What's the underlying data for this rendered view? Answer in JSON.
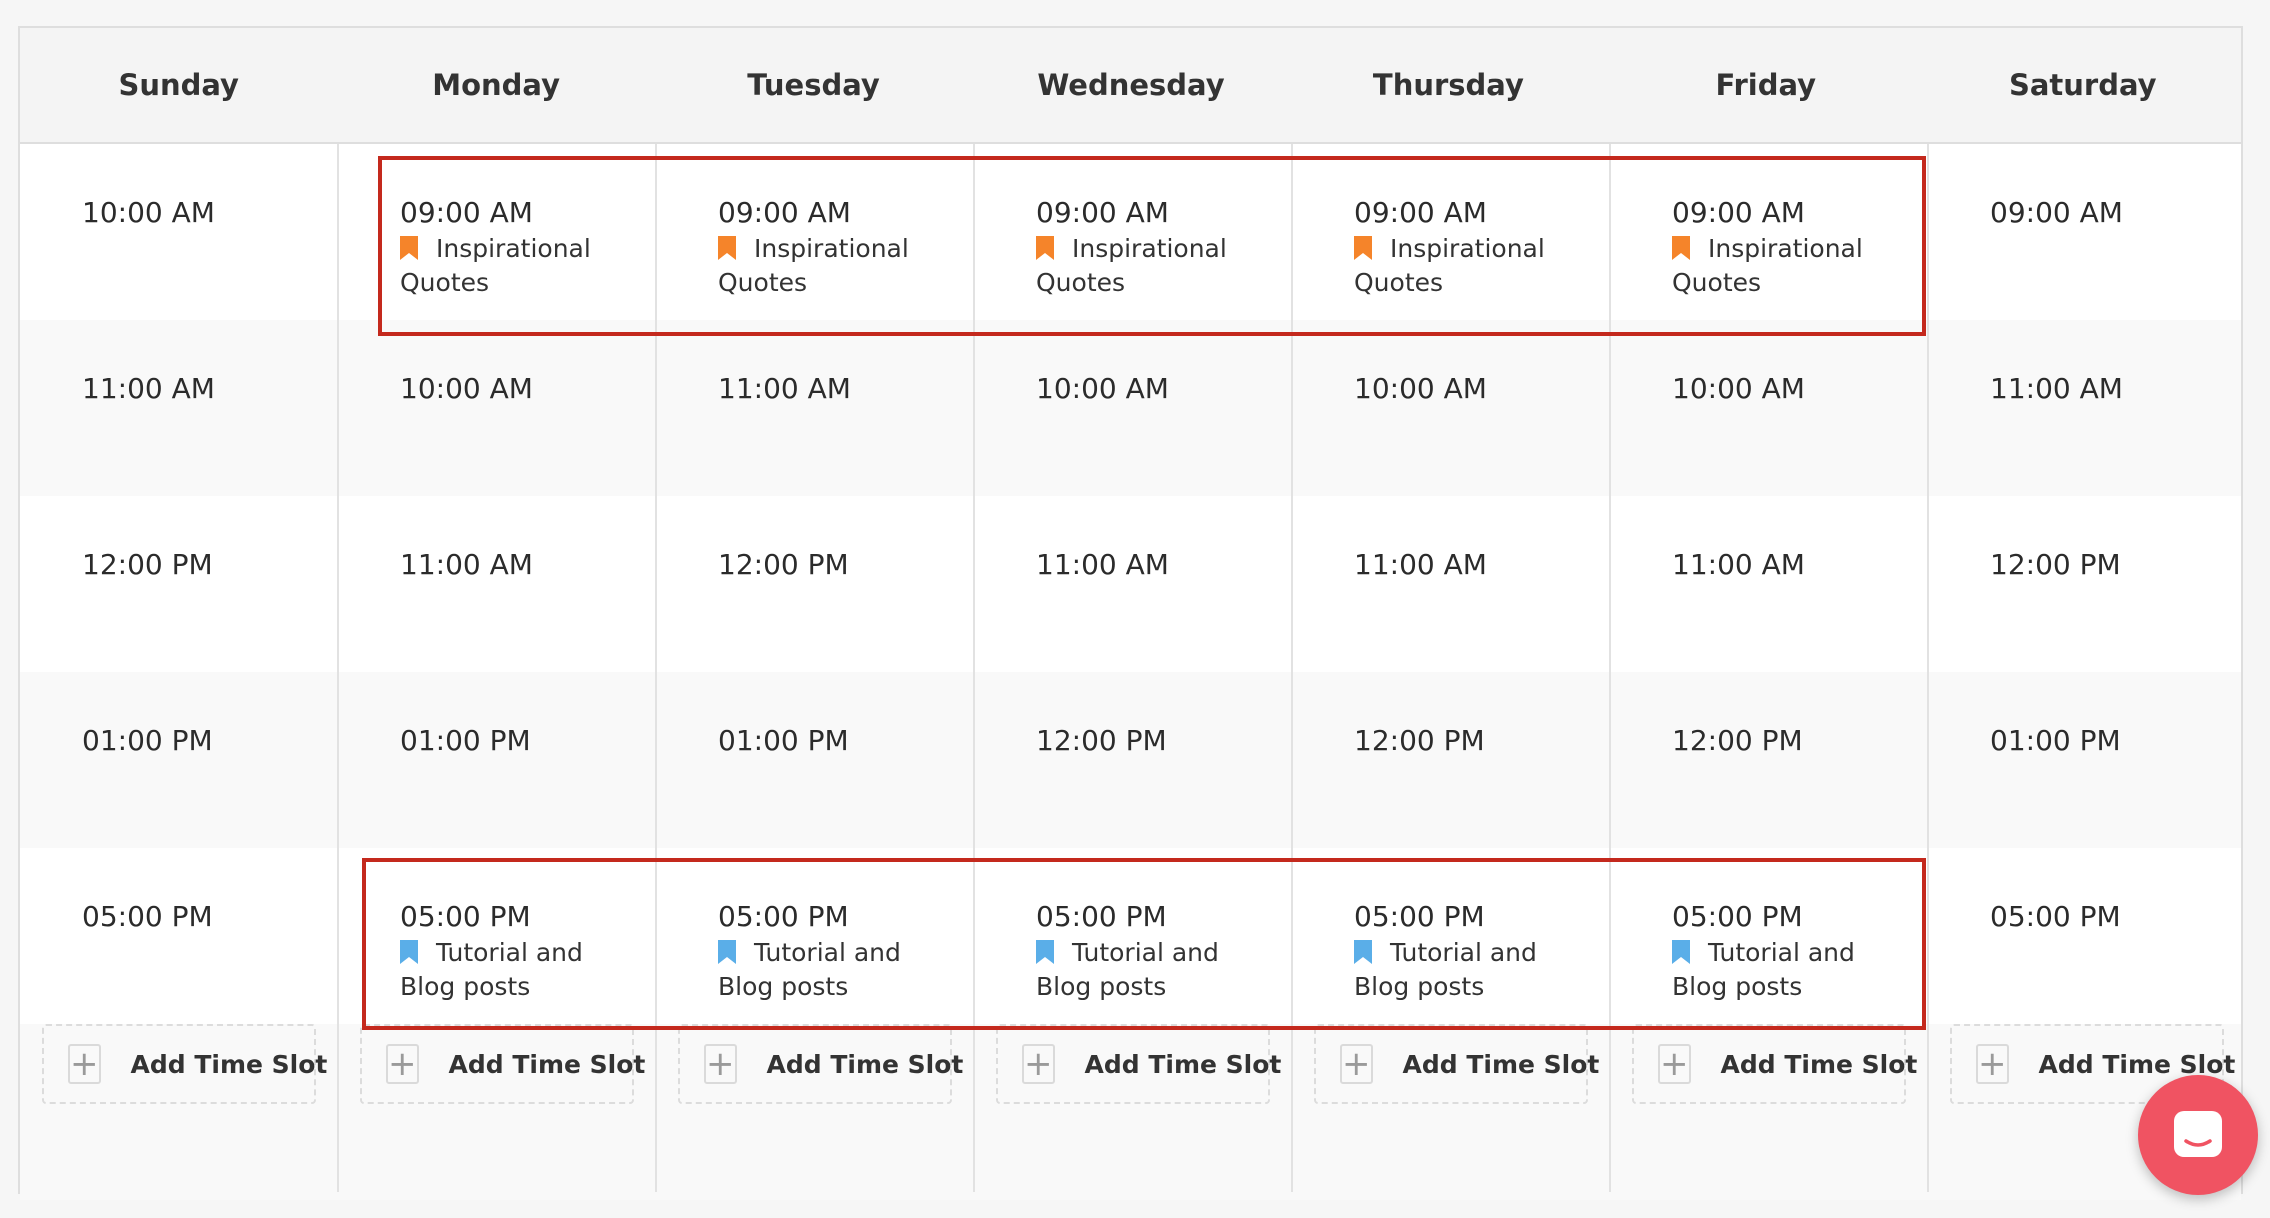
{
  "days": [
    "Sunday",
    "Monday",
    "Tuesday",
    "Wednesday",
    "Thursday",
    "Friday",
    "Saturday"
  ],
  "columns": [
    {
      "day": "Sunday",
      "slots": [
        {
          "time": "10:00 AM"
        },
        {
          "time": "11:00 AM"
        },
        {
          "time": "12:00 PM"
        },
        {
          "time": "01:00 PM"
        },
        {
          "time": "05:00 PM"
        }
      ]
    },
    {
      "day": "Monday",
      "slots": [
        {
          "time": "09:00 AM",
          "tag": "Inspirational Quotes",
          "tag_color": "#f5842a"
        },
        {
          "time": "10:00 AM"
        },
        {
          "time": "11:00 AM"
        },
        {
          "time": "01:00 PM"
        },
        {
          "time": "05:00 PM",
          "tag": "Tutorial and Blog posts",
          "tag_color": "#5aaee8"
        }
      ]
    },
    {
      "day": "Tuesday",
      "slots": [
        {
          "time": "09:00 AM",
          "tag": "Inspirational Quotes",
          "tag_color": "#f5842a"
        },
        {
          "time": "11:00 AM"
        },
        {
          "time": "12:00 PM"
        },
        {
          "time": "01:00 PM"
        },
        {
          "time": "05:00 PM",
          "tag": "Tutorial and Blog posts",
          "tag_color": "#5aaee8"
        }
      ]
    },
    {
      "day": "Wednesday",
      "slots": [
        {
          "time": "09:00 AM",
          "tag": "Inspirational Quotes",
          "tag_color": "#f5842a"
        },
        {
          "time": "10:00 AM"
        },
        {
          "time": "11:00 AM"
        },
        {
          "time": "12:00 PM"
        },
        {
          "time": "05:00 PM",
          "tag": "Tutorial and Blog posts",
          "tag_color": "#5aaee8"
        }
      ]
    },
    {
      "day": "Thursday",
      "slots": [
        {
          "time": "09:00 AM",
          "tag": "Inspirational Quotes",
          "tag_color": "#f5842a"
        },
        {
          "time": "10:00 AM"
        },
        {
          "time": "11:00 AM"
        },
        {
          "time": "12:00 PM"
        },
        {
          "time": "05:00 PM",
          "tag": "Tutorial and Blog posts",
          "tag_color": "#5aaee8"
        }
      ]
    },
    {
      "day": "Friday",
      "slots": [
        {
          "time": "09:00 AM",
          "tag": "Inspirational Quotes",
          "tag_color": "#f5842a"
        },
        {
          "time": "10:00 AM"
        },
        {
          "time": "11:00 AM"
        },
        {
          "time": "12:00 PM"
        },
        {
          "time": "05:00 PM",
          "tag": "Tutorial and Blog posts",
          "tag_color": "#5aaee8"
        }
      ]
    },
    {
      "day": "Saturday",
      "slots": [
        {
          "time": "09:00 AM"
        },
        {
          "time": "11:00 AM"
        },
        {
          "time": "12:00 PM"
        },
        {
          "time": "01:00 PM"
        },
        {
          "time": "05:00 PM"
        }
      ]
    }
  ],
  "add_slot_label": "Add Time Slot",
  "add_slot_icon": "plus-icon",
  "chat_icon": "chat-icon",
  "colors": {
    "highlight": "#c4291d",
    "inspirational_tag": "#f5842a",
    "tutorial_tag": "#5aaee8",
    "chat": "#f05362"
  }
}
